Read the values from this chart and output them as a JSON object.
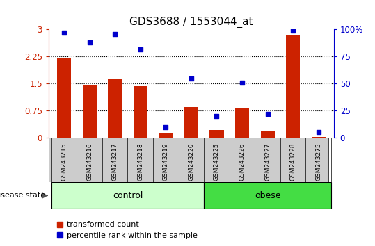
{
  "title": "GDS3688 / 1553044_at",
  "samples": [
    "GSM243215",
    "GSM243216",
    "GSM243217",
    "GSM243218",
    "GSM243219",
    "GSM243220",
    "GSM243225",
    "GSM243226",
    "GSM243227",
    "GSM243228",
    "GSM243275"
  ],
  "transformed_count": [
    2.2,
    1.45,
    1.65,
    1.43,
    0.12,
    0.85,
    0.22,
    0.82,
    0.2,
    2.85,
    0.03
  ],
  "percentile_rank": [
    97,
    88,
    96,
    82,
    10,
    55,
    20,
    51,
    22,
    99,
    5
  ],
  "groups": [
    {
      "label": "control",
      "start": 0,
      "end": 5,
      "color": "#ccffcc"
    },
    {
      "label": "obese",
      "start": 6,
      "end": 10,
      "color": "#44dd44"
    }
  ],
  "bar_color": "#cc2200",
  "dot_color": "#0000cc",
  "ylim_left": [
    0,
    3
  ],
  "ylim_right": [
    0,
    100
  ],
  "yticks_left": [
    0,
    0.75,
    1.5,
    2.25,
    3
  ],
  "yticks_right": [
    0,
    25,
    50,
    75,
    100
  ],
  "ytick_labels_left": [
    "0",
    "0.75",
    "1.5",
    "2.25",
    "3"
  ],
  "ytick_labels_right": [
    "0",
    "25",
    "50",
    "75",
    "100%"
  ],
  "grid_lines": [
    0.75,
    1.5,
    2.25
  ],
  "legend_transformed": "transformed count",
  "legend_percentile": "percentile rank within the sample",
  "disease_state_label": "disease state",
  "background_color": "#ffffff",
  "sample_area_color": "#cccccc",
  "title_fontsize": 11
}
